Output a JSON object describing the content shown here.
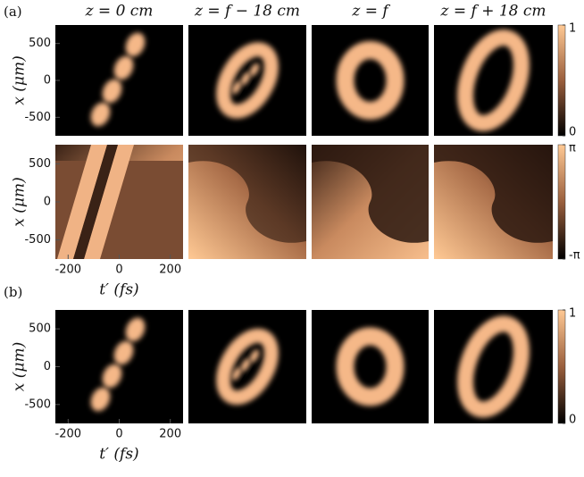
{
  "figure": {
    "panel_labels": [
      "(a)",
      "(b)"
    ],
    "column_titles": [
      "z = 0 cm",
      "z = f − 18 cm",
      "z = f",
      "z = f + 18 cm"
    ],
    "axes": {
      "xlabel": "t′ (fs)",
      "ylabel": "x (μm)",
      "xlim": [
        -250,
        250
      ],
      "ylim": [
        -750,
        750
      ],
      "xticks": [
        -200,
        0,
        200
      ],
      "yticks": [
        500,
        0,
        -500
      ]
    },
    "amplitude_colorbar": {
      "lim": [
        0,
        1
      ],
      "ticks": [
        1,
        0
      ]
    },
    "phase_colorbar": {
      "lim": [
        -3.14159,
        3.14159
      ],
      "ticks": [
        {
          "value": 3.14159,
          "label": "π"
        },
        {
          "value": -3.14159,
          "label": "-π"
        }
      ]
    }
  }
}
